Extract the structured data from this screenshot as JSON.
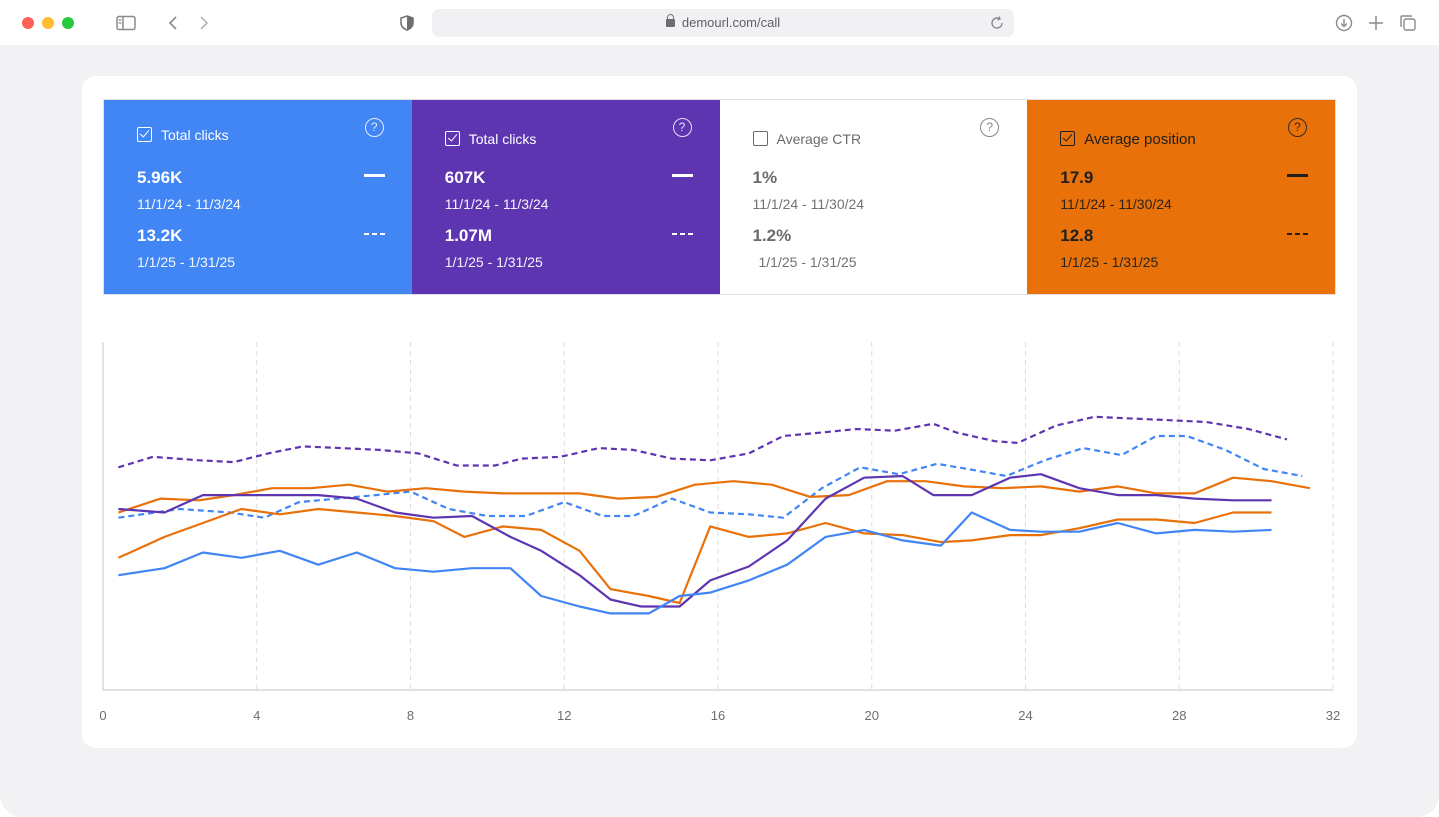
{
  "browser": {
    "url": "demourl.com/call"
  },
  "metrics": [
    {
      "label": "Total clicks",
      "checked": true,
      "color": "#4285f4",
      "value1": "5.96K",
      "range1": "11/1/24 - 11/3/24",
      "value2": "13.2K",
      "range2": "1/1/25 - 1/31/25"
    },
    {
      "label": "Total clicks",
      "checked": true,
      "color": "#5e35b1",
      "value1": "607K",
      "range1": "11/1/24 - 11/3/24",
      "value2": "1.07M",
      "range2": "1/1/25 - 1/31/25"
    },
    {
      "label": "Average CTR",
      "checked": false,
      "color": "#ffffff",
      "value1": "1%",
      "range1": "11/1/24 - 11/30/24",
      "value2": "1.2%",
      "range2": "1/1/25 - 1/31/25"
    },
    {
      "label": "Average position",
      "checked": true,
      "color": "#e8710a",
      "value1": "17.9",
      "range1": "11/1/24 - 11/30/24",
      "value2": "12.8",
      "range2": "1/1/25 - 1/31/25"
    }
  ],
  "chart_data": {
    "type": "line",
    "title": "",
    "xlabel": "",
    "ylabel": "",
    "xlim": [
      0,
      32
    ],
    "ylim": [
      0,
      100
    ],
    "xticks": [
      0,
      4,
      8,
      12,
      16,
      20,
      24,
      28,
      32
    ],
    "grid": "vertical dashed",
    "series": [
      {
        "color": "#5e35b1",
        "dash": true,
        "x": [
          0.4,
          1.3,
          2.5,
          3.4,
          4.3,
          5.2,
          6.2,
          7.2,
          8.2,
          9.2,
          10.2,
          10.9,
          11.9,
          12.9,
          13.8,
          14.8,
          15.8,
          16.8,
          17.7,
          18.7,
          19.6,
          20.6,
          21.6,
          22.2,
          23.2,
          23.8,
          24.8,
          25.8,
          26.8,
          27.8,
          28.7,
          29.8,
          30.8
        ],
        "y": [
          64,
          67,
          66,
          65.5,
          68,
          70,
          69.5,
          69,
          68,
          64.5,
          64.5,
          66.5,
          67,
          69.5,
          69,
          66.5,
          66,
          68,
          73,
          74,
          75,
          74.5,
          76.5,
          74,
          71.5,
          71,
          76,
          78.5,
          78,
          77.5,
          77,
          75,
          72
        ]
      },
      {
        "color": "#4285f4",
        "dash": true,
        "x": [
          0.4,
          2.0,
          3.3,
          4.2,
          5.1,
          6.1,
          7.1,
          8.0,
          9.0,
          10.0,
          11.0,
          12.0,
          13.0,
          13.8,
          14.8,
          15.8,
          16.8,
          17.7,
          18.7,
          19.7,
          20.7,
          21.7,
          22.5,
          23.5,
          24.5,
          25.5,
          26.5,
          27.4,
          28.2,
          29.2,
          30.2,
          31.2
        ],
        "y": [
          49.5,
          52,
          51,
          49.5,
          54,
          55,
          56,
          57,
          52,
          50,
          50,
          54,
          50,
          50,
          55,
          51,
          50.5,
          49.5,
          58,
          64,
          62,
          65,
          63.5,
          61.5,
          66,
          69.5,
          67.5,
          73,
          73,
          69,
          63.5,
          61.5
        ]
      },
      {
        "color": "#e8710a",
        "dash": false,
        "x": [
          0.4,
          1.5,
          2.5,
          3.4,
          4.4,
          5.4,
          6.4,
          7.4,
          8.4,
          9.4,
          10.4,
          11.4,
          12.4,
          13.4,
          14.4,
          15.4,
          16.4,
          17.4,
          18.4,
          19.4,
          20.4,
          21.4,
          22.4,
          23.4,
          24.4,
          25.4,
          26.4,
          27.4,
          28.4,
          29.4,
          30.4,
          31.4
        ],
        "y": [
          51,
          55,
          54.5,
          56,
          58,
          58,
          59,
          57,
          58,
          57,
          56.5,
          56.5,
          56.5,
          55,
          55.5,
          59,
          60,
          59,
          55.5,
          56,
          60,
          60,
          58.5,
          58,
          58.5,
          57,
          58.5,
          56.5,
          56.5,
          61,
          60,
          58
        ]
      },
      {
        "color": "#e8710a",
        "dash": false,
        "x": [
          0.4,
          1.6,
          2.6,
          3.6,
          4.6,
          5.6,
          6.6,
          7.6,
          8.6,
          9.4,
          10.4,
          11.4,
          12.4,
          13.2,
          14.2,
          15.0,
          15.8,
          16.8,
          17.8,
          18.8,
          19.8,
          20.8,
          21.8,
          22.6,
          23.6,
          24.4,
          25.4,
          26.4,
          27.4,
          28.4,
          29.4,
          30.4
        ],
        "y": [
          38,
          44,
          48,
          52,
          50.5,
          52,
          51,
          50,
          48.5,
          44,
          47,
          46,
          40,
          29,
          27,
          25,
          47,
          44,
          45,
          48,
          45,
          44.5,
          42.5,
          43,
          44.5,
          44.5,
          46.5,
          49,
          49,
          48,
          51,
          51
        ]
      },
      {
        "color": "#5e35b1",
        "dash": false,
        "x": [
          0.4,
          1.6,
          2.6,
          3.6,
          4.6,
          5.6,
          6.6,
          7.6,
          8.6,
          9.6,
          10.6,
          11.4,
          12.4,
          13.2,
          14.0,
          15.0,
          15.8,
          16.8,
          17.8,
          18.8,
          19.8,
          20.8,
          21.6,
          22.6,
          23.6,
          24.4,
          25.4,
          26.4,
          27.4,
          28.4,
          29.4,
          30.4
        ],
        "y": [
          52,
          51,
          56,
          56,
          56,
          56,
          55,
          51,
          49.5,
          50,
          44,
          40,
          33,
          26,
          24,
          24,
          31.5,
          35.5,
          43,
          55,
          61,
          61.5,
          56,
          56,
          61,
          62,
          58,
          56,
          56,
          55,
          54.5,
          54.5
        ]
      },
      {
        "color": "#4285f4",
        "dash": false,
        "x": [
          0.4,
          1.6,
          2.6,
          3.6,
          4.6,
          5.6,
          6.6,
          7.6,
          8.6,
          9.6,
          10.6,
          11.4,
          12.4,
          13.2,
          14.2,
          15.0,
          15.8,
          16.8,
          17.8,
          18.8,
          19.8,
          20.8,
          21.8,
          22.6,
          23.6,
          24.4,
          25.4,
          26.4,
          27.4,
          28.4,
          29.4,
          30.4
        ],
        "y": [
          33,
          35,
          39.5,
          38,
          40,
          36,
          39.5,
          35,
          34,
          35,
          35,
          27,
          24,
          22,
          22,
          27,
          28,
          31.5,
          36,
          44,
          46,
          43,
          41.5,
          51,
          46,
          45.5,
          45.5,
          48,
          45,
          46,
          45.5,
          46
        ]
      }
    ]
  }
}
